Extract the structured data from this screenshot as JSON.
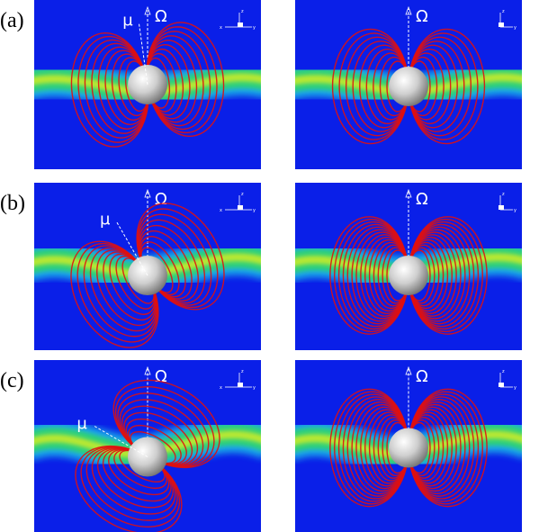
{
  "rows": [
    {
      "label": "(a)",
      "panels": [
        {
          "mu": "μ",
          "omega": "Ω",
          "axes": [
            "z",
            "x",
            "y"
          ]
        },
        {
          "omega": "Ω",
          "axes": [
            "z",
            "y"
          ]
        }
      ]
    },
    {
      "label": "(b)",
      "panels": [
        {
          "mu": "μ",
          "omega": "Ω",
          "axes": [
            "z",
            "x",
            "y"
          ]
        },
        {
          "omega": "Ω",
          "axes": [
            "z",
            "y"
          ]
        }
      ]
    },
    {
      "label": "(c)",
      "panels": [
        {
          "mu": "μ",
          "omega": "Ω",
          "axes": [
            "z",
            "x",
            "y"
          ]
        },
        {
          "omega": "Ω",
          "axes": [
            "z",
            "y"
          ]
        }
      ]
    }
  ]
}
